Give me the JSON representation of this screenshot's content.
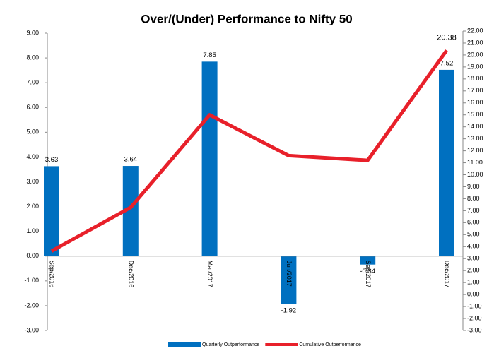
{
  "chart_data": {
    "type": "bar-line",
    "title": "Over/(Under) Performance to Nifty 50",
    "categories": [
      "Sep/2016",
      "Dec/2016",
      "Mar/2017",
      "Jun/2017",
      "Sep/2017",
      "Dec/2017"
    ],
    "series": [
      {
        "name": "Quarterly Outperformance",
        "type": "bar",
        "color": "#0070c0",
        "values": [
          3.63,
          3.64,
          7.85,
          -1.92,
          -0.34,
          7.52
        ]
      },
      {
        "name": "Cumulative Outperformance",
        "type": "line",
        "axis": "y2",
        "color": "#e8202a",
        "values": [
          3.63,
          7.27,
          15.0,
          11.6,
          11.2,
          20.38
        ]
      }
    ],
    "ylim": [
      -3,
      9
    ],
    "yticks": [
      {
        "value": -3,
        "label": "-3.00"
      },
      {
        "value": -2,
        "label": "-2.00"
      },
      {
        "value": -1,
        "label": "-1.00"
      },
      {
        "value": 0,
        "label": "0.00"
      },
      {
        "value": 1,
        "label": "1.00"
      },
      {
        "value": 2,
        "label": "2.00"
      },
      {
        "value": 3,
        "label": "3.00"
      },
      {
        "value": 4,
        "label": "4.00"
      },
      {
        "value": 5,
        "label": "5.00"
      },
      {
        "value": 6,
        "label": "6.00"
      },
      {
        "value": 7,
        "label": "7.00"
      },
      {
        "value": 8,
        "label": "8.00"
      },
      {
        "value": 9,
        "label": "9.00"
      }
    ],
    "y2lim": [
      -3,
      22
    ],
    "y2ticks": [
      {
        "value": -3,
        "label": "-3.00"
      },
      {
        "value": -2,
        "label": "-2.00"
      },
      {
        "value": -1,
        "label": "-1.00"
      },
      {
        "value": 0,
        "label": "0.00"
      },
      {
        "value": 1,
        "label": "1.00"
      },
      {
        "value": 2,
        "label": "2.00"
      },
      {
        "value": 3,
        "label": "3.00"
      },
      {
        "value": 4,
        "label": "4.00"
      },
      {
        "value": 5,
        "label": "5.00"
      },
      {
        "value": 6,
        "label": "6.00"
      },
      {
        "value": 7,
        "label": "7.00"
      },
      {
        "value": 8,
        "label": "8.00"
      },
      {
        "value": 9,
        "label": "9.00"
      },
      {
        "value": 10,
        "label": "10.00"
      },
      {
        "value": 11,
        "label": "11.00"
      },
      {
        "value": 12,
        "label": "12.00"
      },
      {
        "value": 13,
        "label": "13.00"
      },
      {
        "value": 14,
        "label": "14.00"
      },
      {
        "value": 15,
        "label": "15.00"
      },
      {
        "value": 16,
        "label": "16.00"
      },
      {
        "value": 17,
        "label": "17.00"
      },
      {
        "value": 18,
        "label": "18.00"
      },
      {
        "value": 19,
        "label": "19.00"
      },
      {
        "value": 20,
        "label": "20.00"
      },
      {
        "value": 21,
        "label": "21.00"
      },
      {
        "value": 22,
        "label": "22.00"
      }
    ],
    "grid": false,
    "legend": "bottom"
  }
}
